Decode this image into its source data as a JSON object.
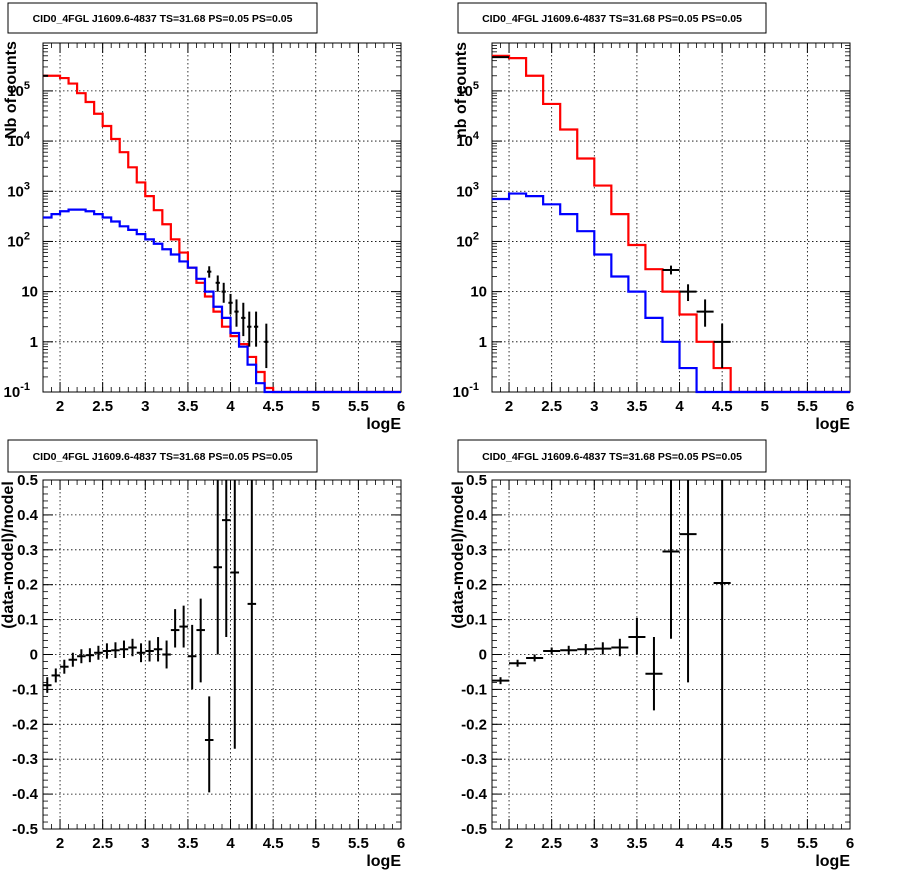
{
  "chart_data": [
    {
      "type": "line",
      "title": "CID0_4FGL J1609.6-4837 TS=31.68 PS=0.05 PS=0.05",
      "xlabel": "logE",
      "ylabel": "Nb of counts",
      "yscale": "log",
      "xlim": [
        1.8,
        6.0
      ],
      "ylim": [
        0.1,
        900000
      ],
      "xticks": [
        "2",
        "2.5",
        "3",
        "3.5",
        "4",
        "4.5",
        "5",
        "5.5",
        "6"
      ],
      "yticks": [
        "10^-1",
        "1",
        "10",
        "10^2",
        "10^3",
        "10^4",
        "10^5"
      ],
      "grid": true,
      "bin_edges": [
        1.8,
        1.9,
        2.0,
        2.1,
        2.2,
        2.3,
        2.4,
        2.5,
        2.6,
        2.7,
        2.8,
        2.9,
        3.0,
        3.1,
        3.2,
        3.3,
        3.4,
        3.5,
        3.6,
        3.7,
        3.8,
        3.9,
        4.0,
        4.1,
        4.2,
        4.3,
        4.4,
        4.5,
        4.6,
        4.7,
        4.8,
        4.9,
        5.0,
        5.1,
        5.2,
        5.3,
        5.4,
        5.5,
        5.6,
        5.7,
        5.8,
        5.9,
        6.0
      ],
      "series": [
        {
          "color": "#ff0000",
          "values": [
            200000,
            200000,
            180000,
            140000,
            90000,
            60000,
            35000,
            20000,
            11000,
            6000,
            3000,
            1500,
            800,
            420,
            220,
            110,
            60,
            30,
            15,
            8,
            4,
            2,
            1.3,
            0.9,
            0.5,
            0.25,
            0.12,
            0.07,
            0.05,
            0.05,
            0.05,
            0.05,
            0.05,
            0.05,
            0.05,
            0.05,
            0.05,
            0.05,
            0.05,
            0.05,
            0.05,
            0.05
          ]
        },
        {
          "color": "#0000ff",
          "values": [
            300,
            350,
            400,
            430,
            430,
            400,
            350,
            300,
            250,
            200,
            170,
            140,
            110,
            90,
            70,
            55,
            40,
            30,
            18,
            10,
            5,
            3,
            1.5,
            0.8,
            0.35,
            0.15,
            0.06,
            0.05,
            0.05,
            0.05,
            0.05,
            0.05,
            0.05,
            0.05,
            0.05,
            0.05,
            0.05,
            0.05,
            0.05,
            0.05,
            0.05,
            0.05
          ]
        }
      ],
      "points": [
        {
          "x": 3.75,
          "y": 25,
          "xerr": 0.025,
          "ylo": 19,
          "yhi": 32
        },
        {
          "x": 3.85,
          "y": 15,
          "xerr": 0.025,
          "ylo": 10,
          "yhi": 21
        },
        {
          "x": 3.92,
          "y": 10,
          "xerr": 0.025,
          "ylo": 6,
          "yhi": 15
        },
        {
          "x": 4.0,
          "y": 6,
          "xerr": 0.025,
          "ylo": 3.5,
          "yhi": 9
        },
        {
          "x": 4.07,
          "y": 4,
          "xerr": 0.025,
          "ylo": 2,
          "yhi": 7
        },
        {
          "x": 4.15,
          "y": 3,
          "xerr": 0.025,
          "ylo": 1.3,
          "yhi": 6
        },
        {
          "x": 4.22,
          "y": 2,
          "xerr": 0.025,
          "ylo": 0.8,
          "yhi": 4
        },
        {
          "x": 4.3,
          "y": 2,
          "xerr": 0.025,
          "ylo": 0.8,
          "yhi": 4
        },
        {
          "x": 4.42,
          "y": 1,
          "xerr": 0.025,
          "ylo": 0.3,
          "yhi": 2.3
        },
        {
          "x": 1.83,
          "y": 200000,
          "xerr": 0.03,
          "ylo": 195000,
          "yhi": 205000
        }
      ]
    },
    {
      "type": "line",
      "title": "CID0_4FGL J1609.6-4837 TS=31.68 PS=0.05 PS=0.05",
      "xlabel": "logE",
      "ylabel": "nb of counts",
      "yscale": "log",
      "xlim": [
        1.8,
        6.0
      ],
      "ylim": [
        0.1,
        900000
      ],
      "xticks": [
        "2",
        "2.5",
        "3",
        "3.5",
        "4",
        "4.5",
        "5",
        "5.5",
        "6"
      ],
      "yticks": [
        "10^-1",
        "1",
        "10",
        "10^2",
        "10^3",
        "10^4",
        "10^5"
      ],
      "grid": true,
      "bin_edges": [
        1.8,
        2.0,
        2.2,
        2.4,
        2.6,
        2.8,
        3.0,
        3.2,
        3.4,
        3.6,
        3.8,
        4.0,
        4.2,
        4.4,
        4.6,
        4.8,
        5.0,
        5.2,
        5.4,
        5.6,
        5.8,
        6.0
      ],
      "series": [
        {
          "color": "#ff0000",
          "values": [
            500000,
            450000,
            200000,
            55000,
            17000,
            4500,
            1300,
            350,
            85,
            28,
            10,
            3.5,
            1.0,
            0.3,
            0.05,
            0.05,
            0.05,
            0.05,
            0.05,
            0.05,
            0.05
          ]
        },
        {
          "color": "#0000ff",
          "values": [
            700,
            900,
            800,
            550,
            350,
            160,
            55,
            20,
            10,
            3,
            1.0,
            0.3,
            0.1,
            0.05,
            0.05,
            0.05,
            0.05,
            0.05,
            0.05,
            0.05,
            0.05
          ]
        }
      ],
      "points": [
        {
          "x": 1.9,
          "y": 470000,
          "xerr": 0.1,
          "ylo": 460000,
          "yhi": 480000
        },
        {
          "x": 3.9,
          "y": 27,
          "xerr": 0.1,
          "ylo": 22,
          "yhi": 33
        },
        {
          "x": 4.1,
          "y": 10,
          "xerr": 0.1,
          "ylo": 6.5,
          "yhi": 14
        },
        {
          "x": 4.3,
          "y": 4,
          "xerr": 0.1,
          "ylo": 2,
          "yhi": 7
        },
        {
          "x": 4.5,
          "y": 1,
          "xerr": 0.1,
          "ylo": 0.3,
          "yhi": 2.3
        }
      ]
    },
    {
      "type": "scatter",
      "title": "CID0_4FGL J1609.6-4837 TS=31.68 PS=0.05 PS=0.05",
      "xlabel": "logE",
      "ylabel": "(data-model)/model",
      "yscale": "linear",
      "xlim": [
        1.8,
        6.0
      ],
      "ylim": [
        -0.5,
        0.5
      ],
      "xticks": [
        "2",
        "2.5",
        "3",
        "3.5",
        "4",
        "4.5",
        "5",
        "5.5",
        "6"
      ],
      "yticks": [
        "-0.5",
        "-0.4",
        "-0.3",
        "-0.2",
        "-0.1",
        "0",
        "0.1",
        "0.2",
        "0.3",
        "0.4",
        "0.5"
      ],
      "grid": true,
      "points": [
        {
          "x": 1.85,
          "y": -0.088,
          "xerr": 0.05,
          "ylo": -0.11,
          "yhi": -0.065
        },
        {
          "x": 1.95,
          "y": -0.06,
          "xerr": 0.05,
          "ylo": -0.08,
          "yhi": -0.04
        },
        {
          "x": 2.05,
          "y": -0.035,
          "xerr": 0.05,
          "ylo": -0.055,
          "yhi": -0.015
        },
        {
          "x": 2.15,
          "y": -0.015,
          "xerr": 0.05,
          "ylo": -0.035,
          "yhi": 0.005
        },
        {
          "x": 2.25,
          "y": -0.005,
          "xerr": 0.05,
          "ylo": -0.025,
          "yhi": 0.015
        },
        {
          "x": 2.35,
          "y": -0.002,
          "xerr": 0.05,
          "ylo": -0.022,
          "yhi": 0.018
        },
        {
          "x": 2.45,
          "y": 0.005,
          "xerr": 0.05,
          "ylo": -0.015,
          "yhi": 0.025
        },
        {
          "x": 2.55,
          "y": 0.01,
          "xerr": 0.05,
          "ylo": -0.012,
          "yhi": 0.032
        },
        {
          "x": 2.65,
          "y": 0.012,
          "xerr": 0.05,
          "ylo": -0.01,
          "yhi": 0.035
        },
        {
          "x": 2.75,
          "y": 0.015,
          "xerr": 0.05,
          "ylo": -0.01,
          "yhi": 0.04
        },
        {
          "x": 2.85,
          "y": 0.02,
          "xerr": 0.05,
          "ylo": -0.005,
          "yhi": 0.045
        },
        {
          "x": 2.95,
          "y": 0.005,
          "xerr": 0.05,
          "ylo": -0.022,
          "yhi": 0.032
        },
        {
          "x": 3.05,
          "y": 0.01,
          "xerr": 0.05,
          "ylo": -0.02,
          "yhi": 0.04
        },
        {
          "x": 3.15,
          "y": 0.015,
          "xerr": 0.05,
          "ylo": -0.02,
          "yhi": 0.05
        },
        {
          "x": 3.25,
          "y": 0.0,
          "xerr": 0.05,
          "ylo": -0.04,
          "yhi": 0.04
        },
        {
          "x": 3.35,
          "y": 0.07,
          "xerr": 0.05,
          "ylo": 0.02,
          "yhi": 0.13
        },
        {
          "x": 3.45,
          "y": 0.08,
          "xerr": 0.05,
          "ylo": 0.02,
          "yhi": 0.14
        },
        {
          "x": 3.55,
          "y": -0.005,
          "xerr": 0.05,
          "ylo": -0.1,
          "yhi": 0.085
        },
        {
          "x": 3.65,
          "y": 0.07,
          "xerr": 0.05,
          "ylo": -0.08,
          "yhi": 0.16
        },
        {
          "x": 3.75,
          "y": -0.245,
          "xerr": 0.05,
          "ylo": -0.395,
          "yhi": -0.12
        },
        {
          "x": 3.85,
          "y": 0.25,
          "xerr": 0.05,
          "ylo": 0.0,
          "yhi": 0.5
        },
        {
          "x": 3.95,
          "y": 0.385,
          "xerr": 0.05,
          "ylo": 0.05,
          "yhi": 0.5
        },
        {
          "x": 4.05,
          "y": 0.235,
          "xerr": 0.05,
          "ylo": -0.27,
          "yhi": 0.5
        },
        {
          "x": 4.25,
          "y": 0.145,
          "xerr": 0.05,
          "ylo": -0.5,
          "yhi": 0.5
        }
      ]
    },
    {
      "type": "scatter",
      "title": "CID0_4FGL J1609.6-4837 TS=31.68 PS=0.05 PS=0.05",
      "xlabel": "logE",
      "ylabel": "(data-model)/model",
      "yscale": "linear",
      "xlim": [
        1.8,
        6.0
      ],
      "ylim": [
        -0.5,
        0.5
      ],
      "xticks": [
        "2",
        "2.5",
        "3",
        "3.5",
        "4",
        "4.5",
        "5",
        "5.5",
        "6"
      ],
      "yticks": [
        "-0.5",
        "-0.4",
        "-0.3",
        "-0.2",
        "-0.1",
        "0",
        "0.1",
        "0.2",
        "0.3",
        "0.4",
        "0.5"
      ],
      "grid": true,
      "points": [
        {
          "x": 1.9,
          "y": -0.075,
          "xerr": 0.1,
          "ylo": -0.085,
          "yhi": -0.065
        },
        {
          "x": 2.1,
          "y": -0.025,
          "xerr": 0.1,
          "ylo": -0.035,
          "yhi": -0.015
        },
        {
          "x": 2.3,
          "y": -0.01,
          "xerr": 0.1,
          "ylo": -0.02,
          "yhi": 0.0
        },
        {
          "x": 2.5,
          "y": 0.01,
          "xerr": 0.1,
          "ylo": 0.0,
          "yhi": 0.02
        },
        {
          "x": 2.7,
          "y": 0.012,
          "xerr": 0.1,
          "ylo": 0.0,
          "yhi": 0.025
        },
        {
          "x": 2.9,
          "y": 0.015,
          "xerr": 0.1,
          "ylo": 0.0,
          "yhi": 0.03
        },
        {
          "x": 3.1,
          "y": 0.017,
          "xerr": 0.1,
          "ylo": 0.0,
          "yhi": 0.035
        },
        {
          "x": 3.3,
          "y": 0.02,
          "xerr": 0.1,
          "ylo": -0.005,
          "yhi": 0.045
        },
        {
          "x": 3.5,
          "y": 0.05,
          "xerr": 0.1,
          "ylo": 0.0,
          "yhi": 0.105
        },
        {
          "x": 3.7,
          "y": -0.055,
          "xerr": 0.1,
          "ylo": -0.16,
          "yhi": 0.05
        },
        {
          "x": 3.9,
          "y": 0.295,
          "xerr": 0.1,
          "ylo": 0.045,
          "yhi": 0.5
        },
        {
          "x": 4.1,
          "y": 0.345,
          "xerr": 0.1,
          "ylo": -0.08,
          "yhi": 0.5
        },
        {
          "x": 4.5,
          "y": 0.205,
          "xerr": 0.1,
          "ylo": -0.5,
          "yhi": 0.5
        }
      ]
    }
  ]
}
